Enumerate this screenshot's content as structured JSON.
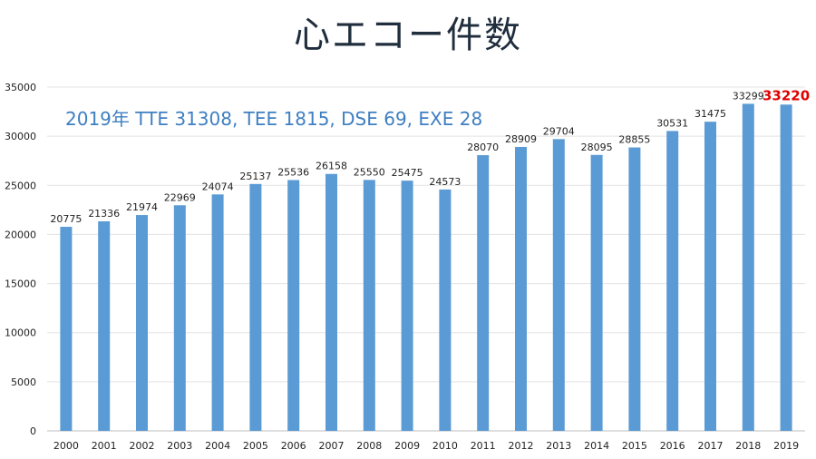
{
  "chart_data": {
    "type": "bar",
    "title": "心エコー件数",
    "annotation": "2019年 TTE 31308, TEE 1815, DSE 69, EXE 28",
    "categories": [
      "2000",
      "2001",
      "2002",
      "2003",
      "2004",
      "2005",
      "2006",
      "2007",
      "2008",
      "2009",
      "2010",
      "2011",
      "2012",
      "2013",
      "2014",
      "2015",
      "2016",
      "2017",
      "2018",
      "2019"
    ],
    "values": [
      20775,
      21336,
      21974,
      22969,
      24074,
      25137,
      25536,
      26158,
      25550,
      25475,
      24573,
      28070,
      28909,
      29704,
      28095,
      28855,
      30531,
      31475,
      33299,
      33220
    ],
    "ylim": [
      0,
      35000
    ],
    "yticks": [
      0,
      5000,
      10000,
      15000,
      20000,
      25000,
      30000,
      35000
    ],
    "grid": true,
    "legend": "none",
    "bar_color": "#5b9bd5",
    "highlight_index": 19,
    "highlight_color": "#e00000"
  }
}
